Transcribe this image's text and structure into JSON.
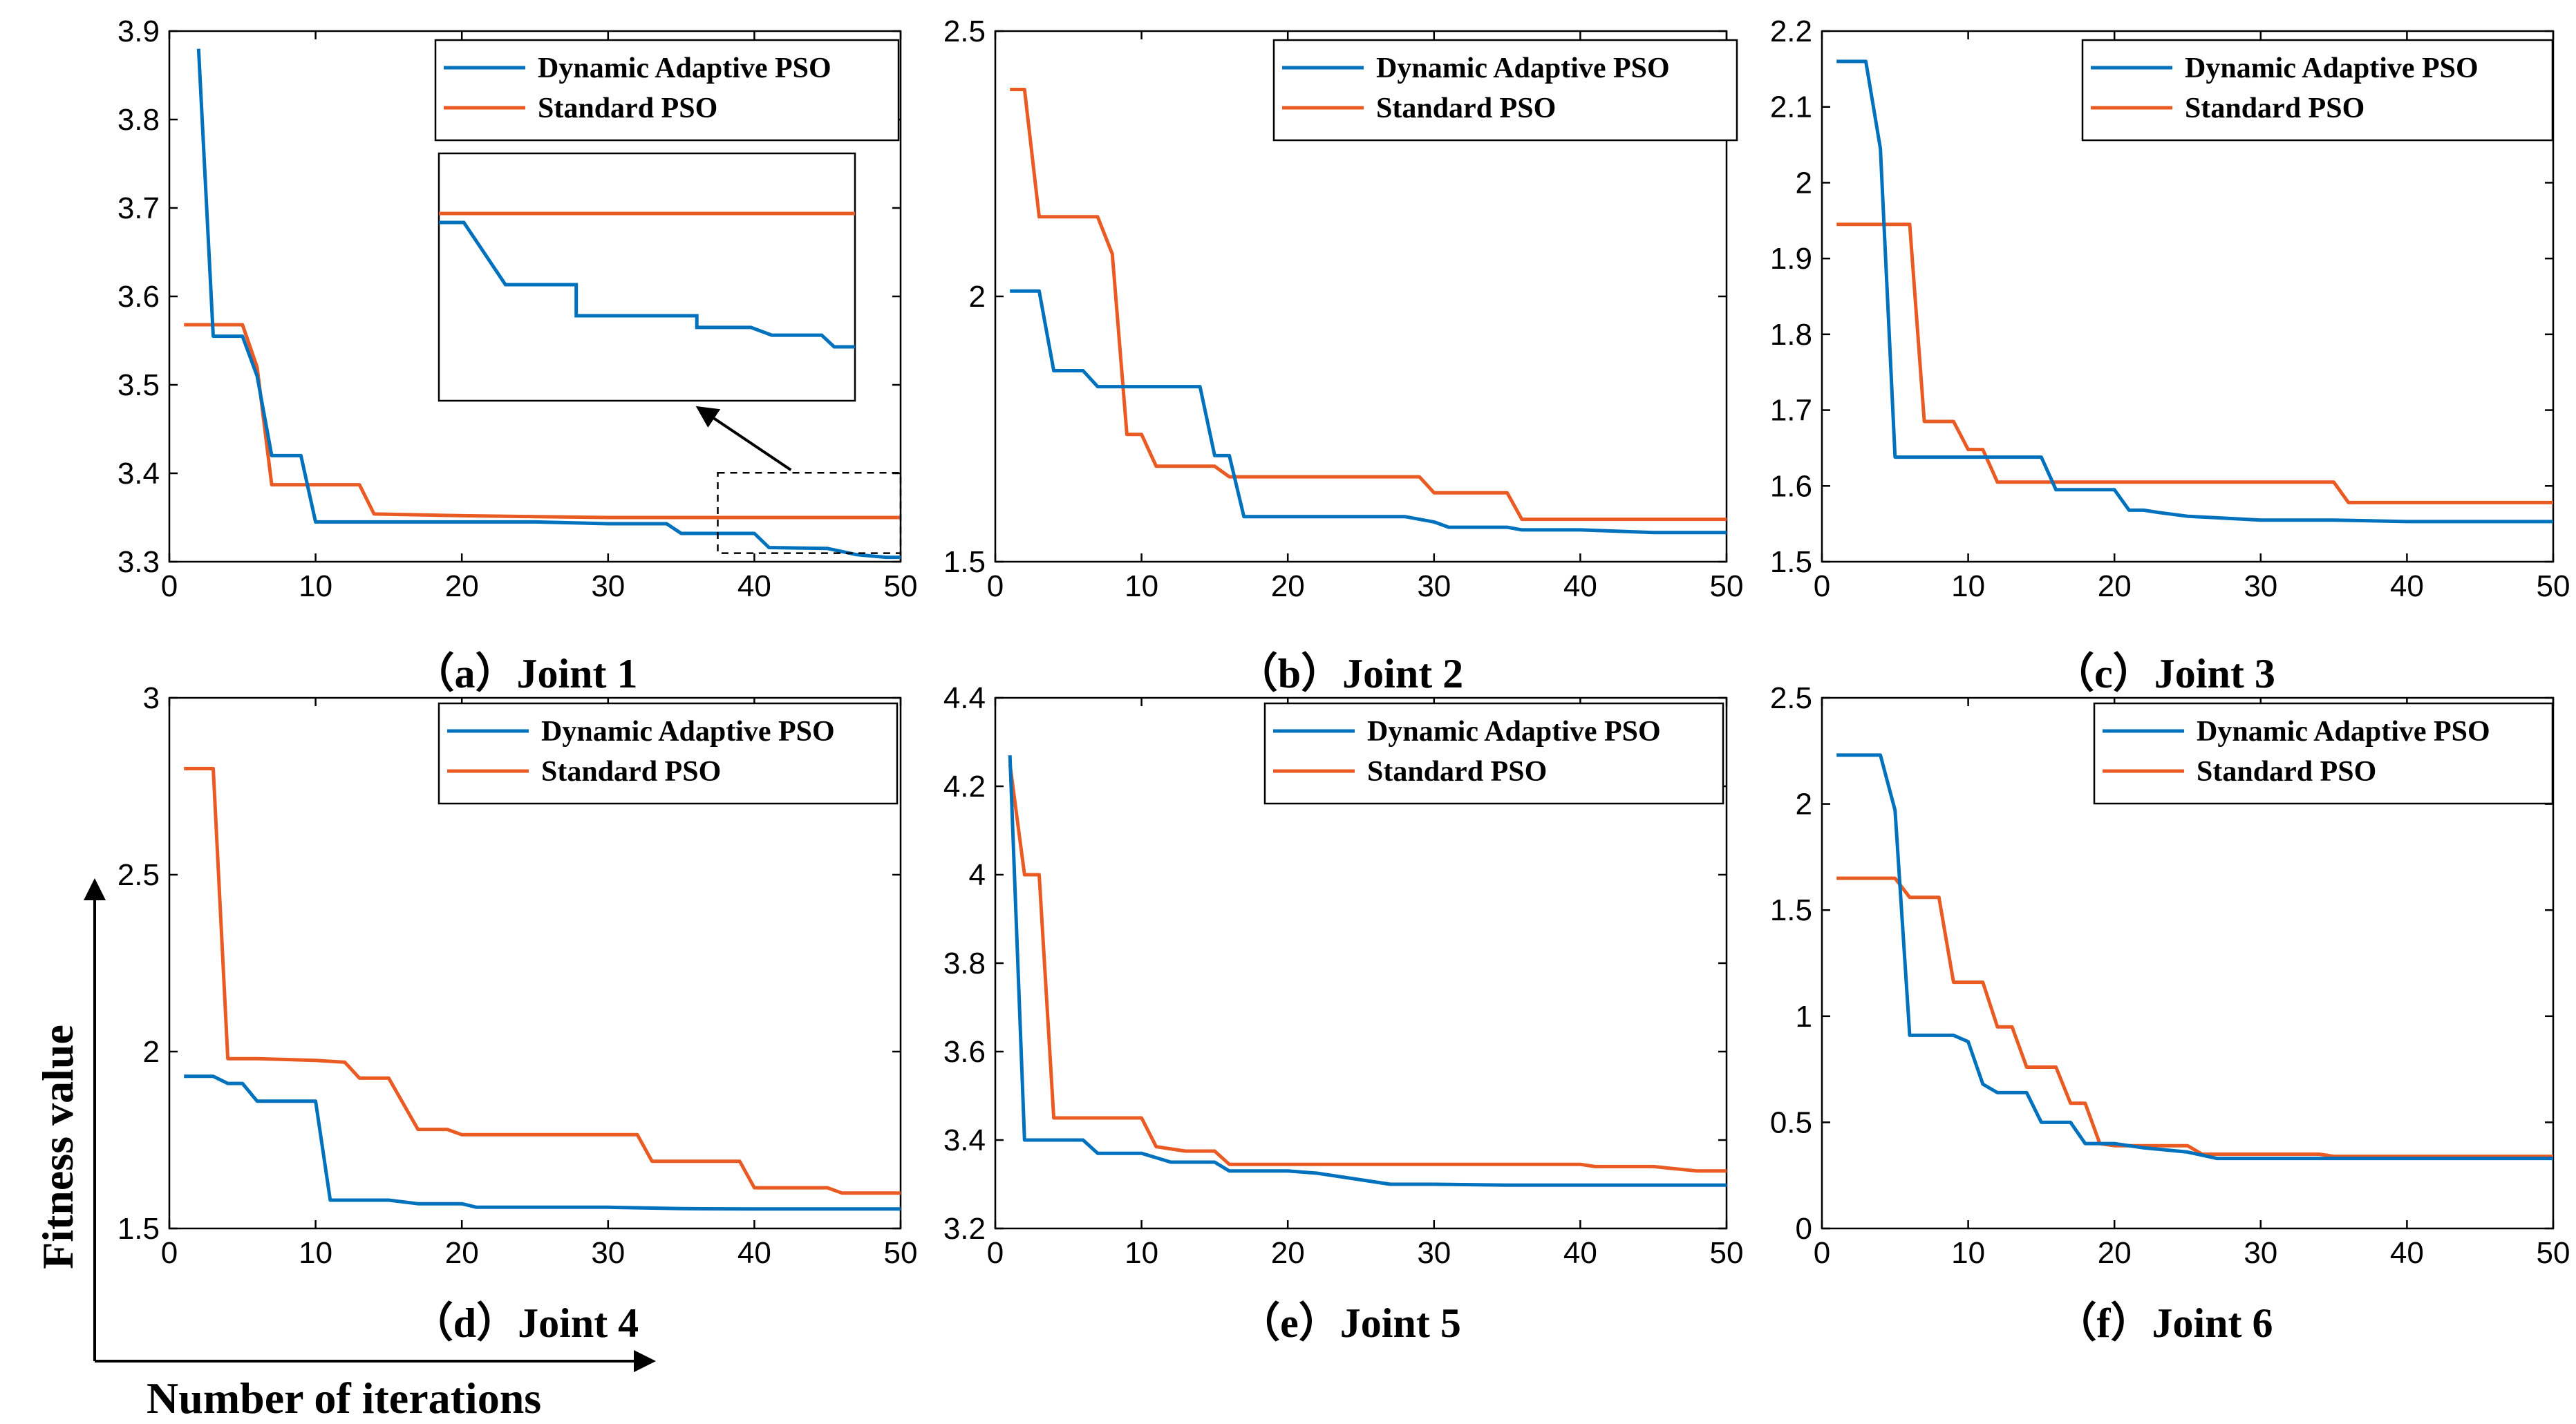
{
  "colors": {
    "dynamic": "#0072BD",
    "standard": "#EA5B24"
  },
  "global_labels": {
    "x": "Number of iterations",
    "y": "Fitness value"
  },
  "chart_data": [
    {
      "type": "line",
      "caption": "（a）Joint 1",
      "xlim": [
        0,
        50
      ],
      "ylim": [
        3.3,
        3.9
      ],
      "xticks": [
        "0",
        "10",
        "20",
        "30",
        "40",
        "50"
      ],
      "yticks": [
        "3.3",
        "3.4",
        "3.5",
        "3.6",
        "3.7",
        "3.8",
        "3.9"
      ],
      "legend": [
        "Dynamic Adaptive PSO",
        "Standard PSO"
      ],
      "series": [
        {
          "name": "Dynamic Adaptive PSO",
          "x": [
            2,
            3,
            5,
            6,
            7,
            8,
            9,
            10,
            15,
            20,
            25,
            30,
            34,
            35,
            40,
            41,
            45,
            47,
            49,
            50
          ],
          "y": [
            3.88,
            3.555,
            3.555,
            3.51,
            3.42,
            3.42,
            3.42,
            3.345,
            3.345,
            3.345,
            3.345,
            3.343,
            3.343,
            3.332,
            3.332,
            3.316,
            3.315,
            3.308,
            3.305,
            3.305
          ]
        },
        {
          "name": "Standard PSO",
          "x": [
            1,
            2,
            5,
            6,
            7,
            10,
            13,
            14,
            20,
            25,
            30,
            40,
            50
          ],
          "y": [
            3.568,
            3.568,
            3.568,
            3.52,
            3.387,
            3.387,
            3.387,
            3.354,
            3.352,
            3.351,
            3.35,
            3.35,
            3.35
          ]
        }
      ]
    },
    {
      "type": "line",
      "caption": "（b）Joint 2",
      "xlim": [
        0,
        50
      ],
      "ylim": [
        1.5,
        2.5
      ],
      "xticks": [
        "0",
        "10",
        "20",
        "30",
        "40",
        "50"
      ],
      "yticks": [
        "1.5",
        "2",
        "2.5"
      ],
      "legend": [
        "Dynamic Adaptive PSO",
        "Standard PSO"
      ],
      "series": [
        {
          "name": "Dynamic Adaptive PSO",
          "x": [
            1,
            3,
            4,
            6,
            7,
            14,
            15,
            16,
            17,
            20,
            28,
            30,
            31,
            35,
            36,
            40,
            45,
            50
          ],
          "y": [
            2.01,
            2.01,
            1.86,
            1.86,
            1.83,
            1.83,
            1.7,
            1.7,
            1.585,
            1.585,
            1.585,
            1.575,
            1.565,
            1.565,
            1.56,
            1.56,
            1.555,
            1.555
          ]
        },
        {
          "name": "Standard PSO",
          "x": [
            1,
            2,
            3,
            7,
            8,
            9,
            10,
            11,
            15,
            16,
            20,
            25,
            29,
            30,
            35,
            36,
            40,
            45,
            50
          ],
          "y": [
            2.39,
            2.39,
            2.15,
            2.15,
            2.08,
            1.74,
            1.74,
            1.68,
            1.68,
            1.66,
            1.66,
            1.66,
            1.66,
            1.63,
            1.63,
            1.58,
            1.58,
            1.58,
            1.58
          ]
        }
      ]
    },
    {
      "type": "line",
      "caption": "（c）Joint 3",
      "xlim": [
        0,
        50
      ],
      "ylim": [
        1.5,
        2.2
      ],
      "xticks": [
        "0",
        "10",
        "20",
        "30",
        "40",
        "50"
      ],
      "yticks": [
        "1.5",
        "1.6",
        "1.7",
        "1.8",
        "1.9",
        "2",
        "2.1",
        "2.2"
      ],
      "legend": [
        "Dynamic Adaptive PSO",
        "Standard PSO"
      ],
      "series": [
        {
          "name": "Dynamic Adaptive PSO",
          "x": [
            1,
            3,
            4,
            5,
            10,
            15,
            16,
            20,
            21,
            22,
            23,
            25,
            27,
            30,
            35,
            40,
            45,
            50
          ],
          "y": [
            2.16,
            2.16,
            2.045,
            1.638,
            1.638,
            1.638,
            1.595,
            1.595,
            1.568,
            1.568,
            1.565,
            1.56,
            1.558,
            1.555,
            1.555,
            1.553,
            1.553,
            1.553
          ]
        },
        {
          "name": "Standard PSO",
          "x": [
            1,
            5,
            6,
            7,
            9,
            10,
            11,
            12,
            15,
            20,
            25,
            30,
            35,
            36,
            40,
            45,
            50
          ],
          "y": [
            1.945,
            1.945,
            1.945,
            1.685,
            1.685,
            1.648,
            1.648,
            1.605,
            1.605,
            1.605,
            1.605,
            1.605,
            1.605,
            1.578,
            1.578,
            1.578,
            1.578
          ]
        }
      ]
    },
    {
      "type": "line",
      "caption": "（d）Joint 4",
      "xlim": [
        0,
        50
      ],
      "ylim": [
        1.5,
        3
      ],
      "xticks": [
        "0",
        "10",
        "20",
        "30",
        "40",
        "50"
      ],
      "yticks": [
        "1.5",
        "2",
        "2.5",
        "3"
      ],
      "legend": [
        "Dynamic Adaptive PSO",
        "Standard PSO"
      ],
      "series": [
        {
          "name": "Dynamic Adaptive PSO",
          "x": [
            1,
            3,
            4,
            5,
            6,
            10,
            11,
            15,
            17,
            20,
            21,
            25,
            30,
            35,
            40,
            45,
            50
          ],
          "y": [
            1.93,
            1.93,
            1.91,
            1.91,
            1.86,
            1.86,
            1.58,
            1.58,
            1.57,
            1.57,
            1.56,
            1.56,
            1.56,
            1.556,
            1.555,
            1.555,
            1.555
          ]
        },
        {
          "name": "Standard PSO",
          "x": [
            1,
            3,
            4,
            6,
            10,
            12,
            13,
            15,
            17,
            19,
            20,
            25,
            30,
            32,
            33,
            35,
            39,
            40,
            45,
            46,
            50
          ],
          "y": [
            2.8,
            2.8,
            1.98,
            1.98,
            1.975,
            1.97,
            1.925,
            1.925,
            1.78,
            1.78,
            1.765,
            1.765,
            1.765,
            1.765,
            1.69,
            1.69,
            1.69,
            1.615,
            1.615,
            1.6,
            1.6
          ]
        }
      ]
    },
    {
      "type": "line",
      "caption": "（e）Joint 5",
      "xlim": [
        0,
        50
      ],
      "ylim": [
        3.2,
        4.4
      ],
      "xticks": [
        "0",
        "10",
        "20",
        "30",
        "40",
        "50"
      ],
      "yticks": [
        "3.2",
        "3.4",
        "3.6",
        "3.8",
        "4",
        "4.2",
        "4.4"
      ],
      "legend": [
        "Dynamic Adaptive PSO",
        "Standard PSO"
      ],
      "series": [
        {
          "name": "Dynamic Adaptive PSO",
          "x": [
            1,
            2,
            6,
            7,
            10,
            12,
            15,
            16,
            20,
            22,
            24,
            27,
            30,
            35,
            40,
            45,
            50
          ],
          "y": [
            4.27,
            3.4,
            3.4,
            3.37,
            3.37,
            3.35,
            3.35,
            3.33,
            3.33,
            3.325,
            3.315,
            3.3,
            3.3,
            3.298,
            3.298,
            3.298,
            3.298
          ]
        },
        {
          "name": "Standard PSO",
          "x": [
            1,
            2,
            3,
            4,
            10,
            11,
            13,
            15,
            16,
            20,
            30,
            40,
            41,
            45,
            48,
            50
          ],
          "y": [
            4.25,
            4.0,
            4.0,
            3.45,
            3.45,
            3.385,
            3.375,
            3.375,
            3.345,
            3.345,
            3.345,
            3.345,
            3.34,
            3.34,
            3.33,
            3.33
          ]
        }
      ]
    },
    {
      "type": "line",
      "caption": "（f）Joint 6",
      "xlim": [
        0,
        50
      ],
      "ylim": [
        0,
        2.5
      ],
      "xticks": [
        "0",
        "10",
        "20",
        "30",
        "40",
        "50"
      ],
      "yticks": [
        "0",
        "0.5",
        "1",
        "1.5",
        "2",
        "2.5"
      ],
      "legend": [
        "Dynamic Adaptive PSO",
        "Standard PSO"
      ],
      "series": [
        {
          "name": "Dynamic Adaptive PSO",
          "x": [
            1,
            4,
            5,
            6,
            9,
            10,
            11,
            12,
            14,
            15,
            17,
            18,
            20,
            22,
            25,
            27,
            30,
            40,
            50
          ],
          "y": [
            2.23,
            2.23,
            1.97,
            0.91,
            0.91,
            0.88,
            0.68,
            0.64,
            0.64,
            0.5,
            0.5,
            0.4,
            0.4,
            0.38,
            0.36,
            0.33,
            0.33,
            0.33,
            0.33
          ]
        },
        {
          "name": "Standard PSO",
          "x": [
            1,
            5,
            6,
            8,
            9,
            11,
            12,
            13,
            14,
            16,
            17,
            18,
            19,
            20,
            25,
            26,
            30,
            34,
            35,
            40,
            50
          ],
          "y": [
            1.65,
            1.65,
            1.56,
            1.56,
            1.16,
            1.16,
            0.95,
            0.95,
            0.76,
            0.76,
            0.59,
            0.59,
            0.4,
            0.39,
            0.39,
            0.35,
            0.35,
            0.35,
            0.34,
            0.34,
            0.34
          ]
        }
      ]
    }
  ],
  "inset": {
    "panel": 0,
    "x_range": [
      37.5,
      50
    ],
    "y_range": [
      3.305,
      3.36
    ]
  }
}
